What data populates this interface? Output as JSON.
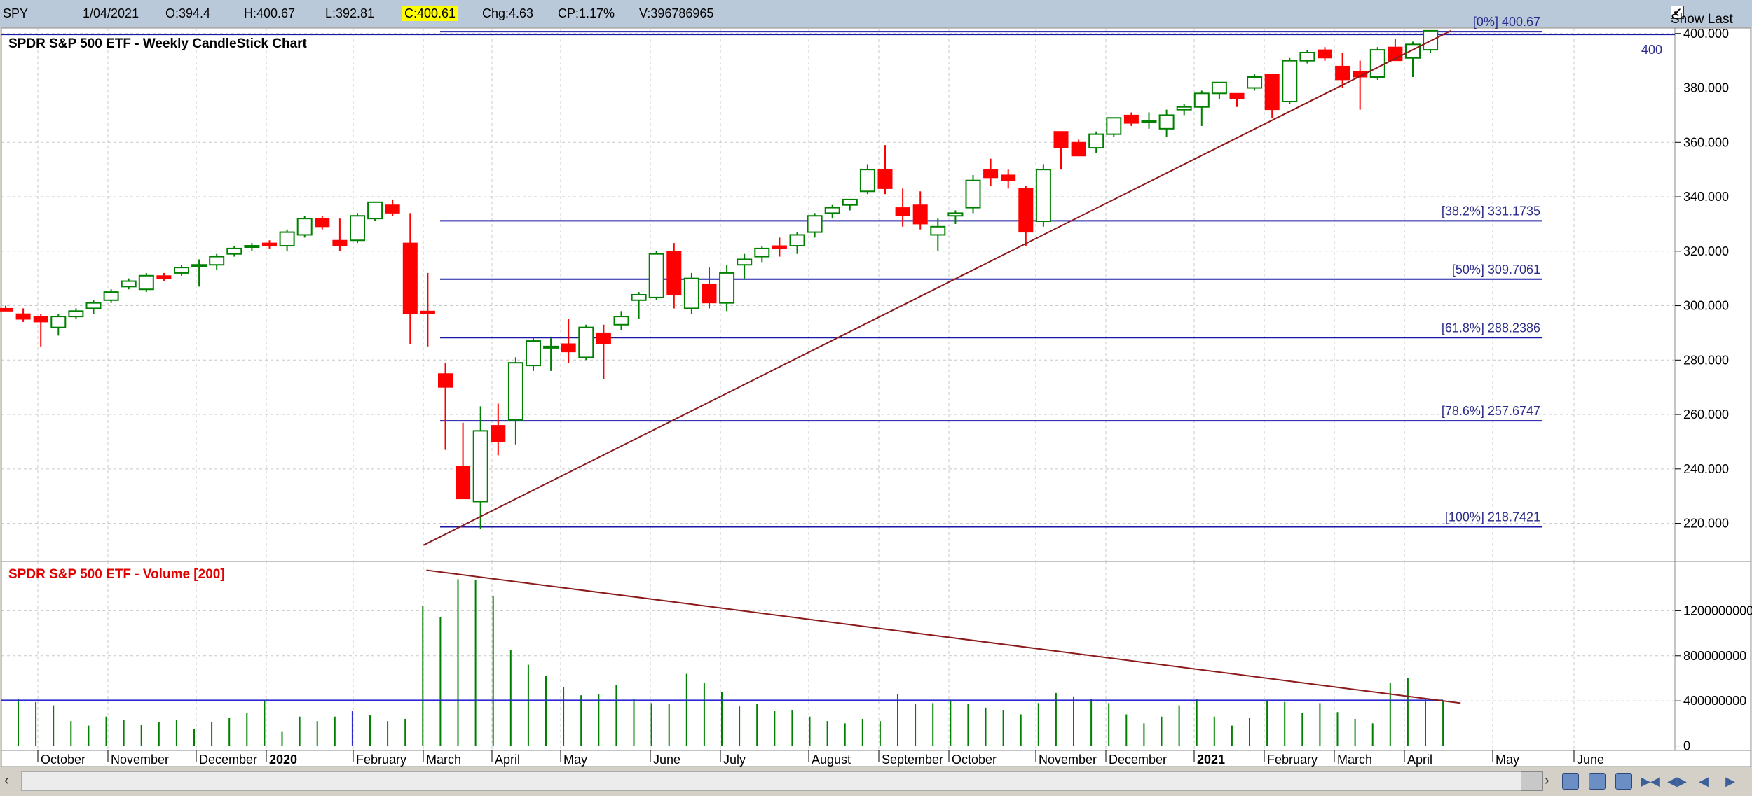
{
  "infobar": {
    "symbol": "SPY",
    "date": "1/04/2021",
    "open": "O:394.4",
    "high": "H:400.67",
    "low": "L:392.81",
    "close": "C:400.61",
    "change": "Chg:4.63",
    "change_pct": "CP:1.17%",
    "volume": "V:396786965",
    "show_last_label": "Show Last",
    "show_last_checked": "✔"
  },
  "colors": {
    "up": "#008000",
    "down": "#ff0000",
    "blue": "#1a1aa6",
    "trend": "#8b1a1a",
    "volume": "#008000",
    "ma": "#2b2bd0"
  },
  "icons": [
    "scroll-left-icon",
    "scroll-right-icon",
    "zoom-in-icon",
    "zoom-out-icon",
    "layout-icon",
    "jump-first-icon",
    "jump-next-icon",
    "step-back-icon",
    "step-forward-icon"
  ],
  "chart_data": [
    {
      "type": "candlestick",
      "title": "SPDR S&P 500 ETF - Weekly CandleStick Chart",
      "ylim": [
        206,
        402
      ],
      "yticks": [
        "400.000",
        "380.000",
        "360.000",
        "340.000",
        "320.000",
        "300.000",
        "280.000",
        "260.000",
        "240.000",
        "220.000"
      ],
      "ytick_values": [
        400,
        380,
        360,
        340,
        320,
        300,
        280,
        260,
        240,
        220
      ],
      "right_marker": "400",
      "x_months": [
        "October",
        "November",
        "December",
        "2020",
        "February",
        "March",
        "April",
        "May",
        "June",
        "July",
        "August",
        "September",
        "October",
        "November",
        "December",
        "2021",
        "February",
        "March",
        "April",
        "May",
        "June"
      ],
      "fib_levels": [
        {
          "label": "[0%] 400.67",
          "value": 400.67
        },
        {
          "label": "[38.2%] 331.1735",
          "value": 331.17
        },
        {
          "label": "[50%] 309.7061",
          "value": 309.71
        },
        {
          "label": "[61.8%] 288.2386",
          "value": 288.24
        },
        {
          "label": "[78.6%] 257.6747",
          "value": 257.67
        },
        {
          "label": "[100%] 218.7421",
          "value": 218.74
        }
      ],
      "trendline": {
        "from": {
          "week": 24,
          "value": 212
        },
        "to": {
          "week": 82,
          "value": 401
        }
      },
      "candles": [
        {
          "w": 0,
          "o": 299,
          "h": 300,
          "l": 298,
          "c": 298
        },
        {
          "w": 1,
          "o": 297,
          "h": 299,
          "l": 294,
          "c": 295
        },
        {
          "w": 2,
          "o": 296,
          "h": 297,
          "l": 285,
          "c": 294
        },
        {
          "w": 3,
          "o": 292,
          "h": 297,
          "l": 289,
          "c": 296
        },
        {
          "w": 4,
          "o": 296,
          "h": 299,
          "l": 295,
          "c": 298
        },
        {
          "w": 5,
          "o": 299,
          "h": 302,
          "l": 297,
          "c": 301
        },
        {
          "w": 6,
          "o": 302,
          "h": 306,
          "l": 301,
          "c": 305
        },
        {
          "w": 7,
          "o": 307,
          "h": 310,
          "l": 306,
          "c": 309
        },
        {
          "w": 8,
          "o": 306,
          "h": 312,
          "l": 305,
          "c": 311
        },
        {
          "w": 9,
          "o": 311,
          "h": 312,
          "l": 309,
          "c": 310
        },
        {
          "w": 10,
          "o": 312,
          "h": 315,
          "l": 311,
          "c": 314
        },
        {
          "w": 11,
          "o": 315,
          "h": 317,
          "l": 307,
          "c": 315
        },
        {
          "w": 12,
          "o": 315,
          "h": 319,
          "l": 313,
          "c": 318
        },
        {
          "w": 13,
          "o": 319,
          "h": 322,
          "l": 318,
          "c": 321
        },
        {
          "w": 14,
          "o": 322,
          "h": 323,
          "l": 320,
          "c": 322
        },
        {
          "w": 15,
          "o": 323,
          "h": 324,
          "l": 321,
          "c": 322
        },
        {
          "w": 16,
          "o": 322,
          "h": 328,
          "l": 320,
          "c": 327
        },
        {
          "w": 17,
          "o": 326,
          "h": 333,
          "l": 325,
          "c": 332
        },
        {
          "w": 18,
          "o": 332,
          "h": 333,
          "l": 328,
          "c": 329
        },
        {
          "w": 19,
          "o": 324,
          "h": 332,
          "l": 320,
          "c": 322
        },
        {
          "w": 20,
          "o": 324,
          "h": 334,
          "l": 323,
          "c": 333
        },
        {
          "w": 21,
          "o": 332,
          "h": 338,
          "l": 331,
          "c": 338
        },
        {
          "w": 22,
          "o": 337,
          "h": 339,
          "l": 333,
          "c": 334
        },
        {
          "w": 23,
          "o": 323,
          "h": 334,
          "l": 286,
          "c": 297
        },
        {
          "w": 24,
          "o": 298,
          "h": 312,
          "l": 285,
          "c": 297
        },
        {
          "w": 25,
          "o": 275,
          "h": 279,
          "l": 247,
          "c": 270
        },
        {
          "w": 26,
          "o": 241,
          "h": 257,
          "l": 229,
          "c": 229
        },
        {
          "w": 27,
          "o": 228,
          "h": 263,
          "l": 218,
          "c": 254
        },
        {
          "w": 28,
          "o": 256,
          "h": 264,
          "l": 245,
          "c": 250
        },
        {
          "w": 29,
          "o": 258,
          "h": 281,
          "l": 249,
          "c": 279
        },
        {
          "w": 30,
          "o": 278,
          "h": 288,
          "l": 276,
          "c": 287
        },
        {
          "w": 31,
          "o": 285,
          "h": 288,
          "l": 276,
          "c": 285
        },
        {
          "w": 32,
          "o": 286,
          "h": 295,
          "l": 279,
          "c": 283
        },
        {
          "w": 33,
          "o": 281,
          "h": 293,
          "l": 280,
          "c": 292
        },
        {
          "w": 34,
          "o": 290,
          "h": 293,
          "l": 273,
          "c": 286
        },
        {
          "w": 35,
          "o": 293,
          "h": 298,
          "l": 291,
          "c": 296
        },
        {
          "w": 36,
          "o": 302,
          "h": 305,
          "l": 295,
          "c": 304
        },
        {
          "w": 37,
          "o": 303,
          "h": 320,
          "l": 302,
          "c": 319
        },
        {
          "w": 38,
          "o": 320,
          "h": 323,
          "l": 299,
          "c": 304
        },
        {
          "w": 39,
          "o": 299,
          "h": 312,
          "l": 297,
          "c": 310
        },
        {
          "w": 40,
          "o": 308,
          "h": 314,
          "l": 299,
          "c": 301
        },
        {
          "w": 41,
          "o": 301,
          "h": 315,
          "l": 298,
          "c": 312
        },
        {
          "w": 42,
          "o": 315,
          "h": 319,
          "l": 310,
          "c": 317
        },
        {
          "w": 43,
          "o": 318,
          "h": 322,
          "l": 316,
          "c": 321
        },
        {
          "w": 44,
          "o": 322,
          "h": 325,
          "l": 318,
          "c": 321
        },
        {
          "w": 45,
          "o": 322,
          "h": 327,
          "l": 319,
          "c": 326
        },
        {
          "w": 46,
          "o": 327,
          "h": 334,
          "l": 325,
          "c": 333
        },
        {
          "w": 47,
          "o": 334,
          "h": 337,
          "l": 332,
          "c": 336
        },
        {
          "w": 48,
          "o": 337,
          "h": 339,
          "l": 335,
          "c": 339
        },
        {
          "w": 49,
          "o": 342,
          "h": 352,
          "l": 341,
          "c": 350
        },
        {
          "w": 50,
          "o": 350,
          "h": 359,
          "l": 341,
          "c": 343
        },
        {
          "w": 51,
          "o": 336,
          "h": 343,
          "l": 329,
          "c": 333
        },
        {
          "w": 52,
          "o": 337,
          "h": 342,
          "l": 328,
          "c": 330
        },
        {
          "w": 53,
          "o": 326,
          "h": 332,
          "l": 320,
          "c": 329
        },
        {
          "w": 54,
          "o": 333,
          "h": 335,
          "l": 330,
          "c": 334
        },
        {
          "w": 55,
          "o": 336,
          "h": 348,
          "l": 334,
          "c": 346
        },
        {
          "w": 56,
          "o": 350,
          "h": 354,
          "l": 344,
          "c": 347
        },
        {
          "w": 57,
          "o": 348,
          "h": 350,
          "l": 343,
          "c": 346
        },
        {
          "w": 58,
          "o": 343,
          "h": 344,
          "l": 322,
          "c": 327
        },
        {
          "w": 59,
          "o": 331,
          "h": 352,
          "l": 329,
          "c": 350
        },
        {
          "w": 60,
          "o": 364,
          "h": 364,
          "l": 350,
          "c": 358
        },
        {
          "w": 61,
          "o": 360,
          "h": 361,
          "l": 355,
          "c": 355
        },
        {
          "w": 62,
          "o": 358,
          "h": 364,
          "l": 356,
          "c": 363
        },
        {
          "w": 63,
          "o": 363,
          "h": 369,
          "l": 362,
          "c": 369
        },
        {
          "w": 64,
          "o": 370,
          "h": 371,
          "l": 366,
          "c": 367
        },
        {
          "w": 65,
          "o": 368,
          "h": 371,
          "l": 365,
          "c": 368
        },
        {
          "w": 66,
          "o": 365,
          "h": 372,
          "l": 362,
          "c": 370
        },
        {
          "w": 67,
          "o": 372,
          "h": 374,
          "l": 370,
          "c": 373
        },
        {
          "w": 68,
          "o": 373,
          "h": 379,
          "l": 366,
          "c": 378
        },
        {
          "w": 69,
          "o": 378,
          "h": 382,
          "l": 376,
          "c": 382
        },
        {
          "w": 70,
          "o": 378,
          "h": 378,
          "l": 373,
          "c": 376
        },
        {
          "w": 71,
          "o": 380,
          "h": 385,
          "l": 379,
          "c": 384
        },
        {
          "w": 72,
          "o": 385,
          "h": 385,
          "l": 369,
          "c": 372
        },
        {
          "w": 73,
          "o": 375,
          "h": 391,
          "l": 374,
          "c": 390
        },
        {
          "w": 74,
          "o": 390,
          "h": 394,
          "l": 389,
          "c": 393
        },
        {
          "w": 75,
          "o": 394,
          "h": 395,
          "l": 390,
          "c": 391
        },
        {
          "w": 76,
          "o": 388,
          "h": 393,
          "l": 380,
          "c": 383
        },
        {
          "w": 77,
          "o": 386,
          "h": 390,
          "l": 372,
          "c": 384
        },
        {
          "w": 78,
          "o": 384,
          "h": 395,
          "l": 383,
          "c": 394
        },
        {
          "w": 79,
          "o": 395,
          "h": 398,
          "l": 390,
          "c": 390
        },
        {
          "w": 80,
          "o": 391,
          "h": 397,
          "l": 384,
          "c": 396
        },
        {
          "w": 81,
          "o": 394,
          "h": 401,
          "l": 393,
          "c": 401
        }
      ]
    },
    {
      "type": "bar",
      "title": "SPDR S&P 500 ETF - Volume [200]",
      "ylim": [
        -40000000,
        1600000000
      ],
      "yticks": [
        "1200000000",
        "800000000",
        "400000000",
        "0"
      ],
      "ytick_values": [
        1200000000,
        800000000,
        400000000,
        0
      ],
      "ma_value": 405000000,
      "trendline": {
        "from": {
          "week": 24,
          "value": 1560000000
        },
        "to": {
          "week": 82,
          "value": 380000000
        }
      },
      "values": [
        420000000,
        390000000,
        360000000,
        220000000,
        180000000,
        260000000,
        230000000,
        190000000,
        210000000,
        230000000,
        150000000,
        210000000,
        250000000,
        290000000,
        400000000,
        130000000,
        260000000,
        220000000,
        260000000,
        310000000,
        270000000,
        220000000,
        240000000,
        1240000000,
        1140000000,
        1480000000,
        1470000000,
        1330000000,
        850000000,
        720000000,
        620000000,
        520000000,
        450000000,
        460000000,
        540000000,
        420000000,
        380000000,
        370000000,
        640000000,
        560000000,
        480000000,
        350000000,
        370000000,
        310000000,
        320000000,
        260000000,
        220000000,
        200000000,
        240000000,
        220000000,
        460000000,
        370000000,
        380000000,
        400000000,
        370000000,
        340000000,
        320000000,
        280000000,
        380000000,
        470000000,
        440000000,
        420000000,
        380000000,
        280000000,
        200000000,
        260000000,
        360000000,
        420000000,
        260000000,
        180000000,
        250000000,
        400000000,
        390000000,
        290000000,
        380000000,
        300000000,
        240000000,
        200000000,
        560000000,
        600000000,
        420000000,
        400000000
      ]
    }
  ]
}
